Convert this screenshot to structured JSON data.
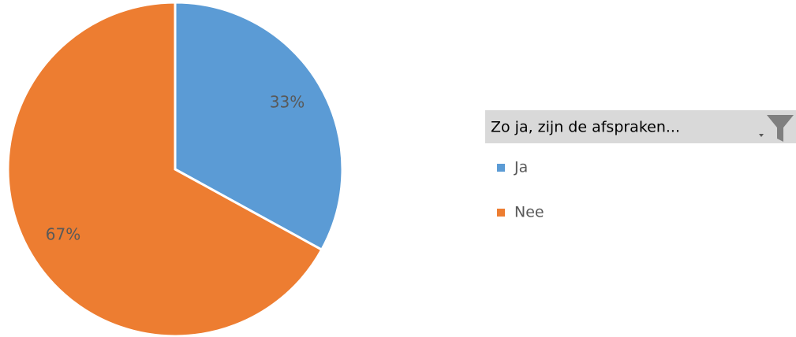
{
  "chart_data": {
    "type": "pie",
    "legend_title": "Zo ja, zijn de afspraken...",
    "categories": [
      "Ja",
      "Nee"
    ],
    "values": [
      33,
      67
    ],
    "value_labels": [
      "33%",
      "67%"
    ],
    "colors": [
      "#5b9bd5",
      "#ed7d31"
    ],
    "legend": "right"
  }
}
